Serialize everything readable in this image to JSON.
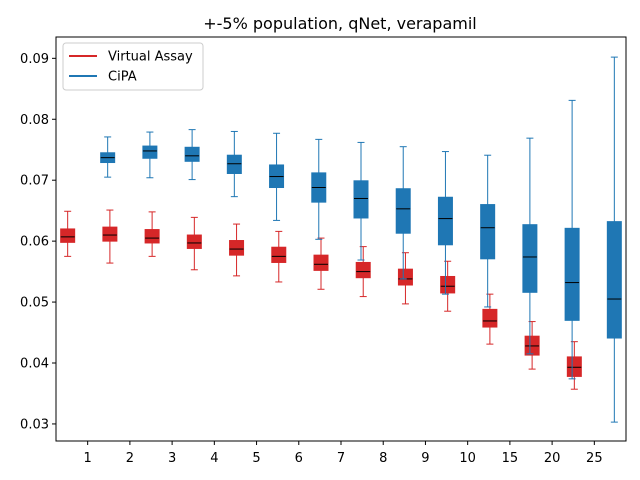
{
  "chart_data": {
    "type": "box",
    "title": "+-5% population, qNet, verapamil",
    "xlabel": "",
    "ylabel": "",
    "categories": [
      "1",
      "2",
      "3",
      "4",
      "5",
      "6",
      "7",
      "8",
      "9",
      "10",
      "15",
      "20",
      "25"
    ],
    "ylim": [
      0.0272,
      0.0935
    ],
    "yticks": [
      "0.03",
      "0.04",
      "0.05",
      "0.06",
      "0.07",
      "0.08",
      "0.09"
    ],
    "grid": false,
    "legend": "top-left",
    "series": [
      {
        "name": "Virtual Assay",
        "color": "#d62728",
        "boxes": [
          {
            "whislo": 0.0575,
            "q1": 0.0598,
            "med": 0.0607,
            "q3": 0.062,
            "whishi": 0.0649
          },
          {
            "whislo": 0.0564,
            "q1": 0.06,
            "med": 0.061,
            "q3": 0.0623,
            "whishi": 0.0651
          },
          {
            "whislo": 0.0575,
            "q1": 0.0597,
            "med": 0.0605,
            "q3": 0.0619,
            "whishi": 0.0648
          },
          {
            "whislo": 0.0553,
            "q1": 0.0588,
            "med": 0.0597,
            "q3": 0.061,
            "whishi": 0.0639
          },
          {
            "whislo": 0.0543,
            "q1": 0.0577,
            "med": 0.0587,
            "q3": 0.0601,
            "whishi": 0.0628
          },
          {
            "whislo": 0.0533,
            "q1": 0.0565,
            "med": 0.0575,
            "q3": 0.059,
            "whishi": 0.0616
          },
          {
            "whislo": 0.0521,
            "q1": 0.0552,
            "med": 0.0562,
            "q3": 0.0577,
            "whishi": 0.0605
          },
          {
            "whislo": 0.0509,
            "q1": 0.054,
            "med": 0.055,
            "q3": 0.0565,
            "whishi": 0.0591
          },
          {
            "whislo": 0.0497,
            "q1": 0.0528,
            "med": 0.0538,
            "q3": 0.0554,
            "whishi": 0.0581
          },
          {
            "whislo": 0.0485,
            "q1": 0.0515,
            "med": 0.0526,
            "q3": 0.0542,
            "whishi": 0.0567
          },
          {
            "whislo": 0.0431,
            "q1": 0.0459,
            "med": 0.0469,
            "q3": 0.0488,
            "whishi": 0.0513
          },
          {
            "whislo": 0.039,
            "q1": 0.0413,
            "med": 0.0428,
            "q3": 0.0444,
            "whishi": 0.0468
          },
          {
            "whislo": 0.0357,
            "q1": 0.0378,
            "med": 0.0393,
            "q3": 0.041,
            "whishi": 0.0435
          }
        ]
      },
      {
        "name": "CiPA",
        "color": "#1f77b4",
        "boxes": [
          {
            "whislo": 0.0705,
            "q1": 0.0729,
            "med": 0.0737,
            "q3": 0.0745,
            "whishi": 0.0771
          },
          {
            "whislo": 0.0704,
            "q1": 0.0736,
            "med": 0.0748,
            "q3": 0.0756,
            "whishi": 0.0779
          },
          {
            "whislo": 0.0701,
            "q1": 0.0731,
            "med": 0.074,
            "q3": 0.0754,
            "whishi": 0.0783
          },
          {
            "whislo": 0.0673,
            "q1": 0.0711,
            "med": 0.0727,
            "q3": 0.0741,
            "whishi": 0.078
          },
          {
            "whislo": 0.0634,
            "q1": 0.0688,
            "med": 0.0706,
            "q3": 0.0725,
            "whishi": 0.0777
          },
          {
            "whislo": 0.0603,
            "q1": 0.0664,
            "med": 0.0688,
            "q3": 0.0712,
            "whishi": 0.0767
          },
          {
            "whislo": 0.0569,
            "q1": 0.0638,
            "med": 0.067,
            "q3": 0.0699,
            "whishi": 0.0762
          },
          {
            "whislo": 0.0538,
            "q1": 0.0613,
            "med": 0.0653,
            "q3": 0.0686,
            "whishi": 0.0755
          },
          {
            "whislo": 0.0513,
            "q1": 0.0594,
            "med": 0.0637,
            "q3": 0.0672,
            "whishi": 0.0747
          },
          {
            "whislo": 0.0492,
            "q1": 0.0571,
            "med": 0.0622,
            "q3": 0.066,
            "whishi": 0.0741
          },
          {
            "whislo": 0.0415,
            "q1": 0.0516,
            "med": 0.0574,
            "q3": 0.0627,
            "whishi": 0.0769
          },
          {
            "whislo": 0.0374,
            "q1": 0.047,
            "med": 0.0532,
            "q3": 0.0621,
            "whishi": 0.0831
          },
          {
            "whislo": 0.0303,
            "q1": 0.0441,
            "med": 0.0505,
            "q3": 0.0632,
            "whishi": 0.0902
          }
        ]
      }
    ]
  }
}
